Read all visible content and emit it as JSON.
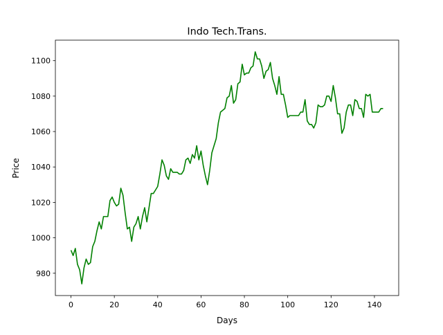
{
  "chart_data": {
    "type": "line",
    "title": "Indo Tech.Trans.",
    "xlabel": "Days",
    "ylabel": "Price",
    "xlim": [
      -7.2,
      151.2
    ],
    "ylim": [
      967.4,
      1111.6
    ],
    "xticks": [
      0,
      20,
      40,
      60,
      80,
      100,
      120,
      140
    ],
    "yticks": [
      980,
      1000,
      1020,
      1040,
      1060,
      1080,
      1100
    ],
    "grid": false,
    "series": [
      {
        "color": "#008000",
        "x": [
          0,
          1,
          2,
          3,
          4,
          5,
          6,
          7,
          8,
          9,
          10,
          11,
          12,
          13,
          14,
          15,
          16,
          17,
          18,
          19,
          20,
          21,
          22,
          23,
          24,
          25,
          26,
          27,
          28,
          29,
          30,
          31,
          32,
          33,
          34,
          35,
          36,
          37,
          38,
          39,
          40,
          41,
          42,
          43,
          44,
          45,
          46,
          47,
          48,
          49,
          50,
          51,
          52,
          53,
          54,
          55,
          56,
          57,
          58,
          59,
          60,
          61,
          62,
          63,
          64,
          65,
          66,
          67,
          68,
          69,
          70,
          71,
          72,
          73,
          74,
          75,
          76,
          77,
          78,
          79,
          80,
          81,
          82,
          83,
          84,
          85,
          86,
          87,
          88,
          89,
          90,
          91,
          92,
          93,
          94,
          95,
          96,
          97,
          98,
          99,
          100,
          101,
          102,
          103,
          104,
          105,
          106,
          107,
          108,
          109,
          110,
          111,
          112,
          113,
          114,
          115,
          116,
          117,
          118,
          119,
          120,
          121,
          122,
          123,
          124,
          125,
          126,
          127,
          128,
          129,
          130,
          131,
          132,
          133,
          134,
          135,
          136,
          137,
          138,
          139,
          140,
          141,
          142,
          143,
          144
        ],
        "y": [
          993,
          990,
          994,
          985,
          982,
          974,
          983,
          988,
          985,
          986,
          995,
          998,
          1004,
          1009,
          1005,
          1012,
          1012,
          1012,
          1021,
          1023,
          1020,
          1018,
          1019,
          1028,
          1024,
          1014,
          1005,
          1006,
          998,
          1006,
          1008,
          1012,
          1005,
          1012,
          1017,
          1009,
          1017,
          1025,
          1025,
          1027,
          1029,
          1036,
          1044,
          1041,
          1035,
          1033,
          1039,
          1037,
          1037,
          1037,
          1036,
          1036,
          1038,
          1044,
          1045,
          1042,
          1047,
          1045,
          1052,
          1044,
          1049,
          1041,
          1035,
          1030,
          1038,
          1048,
          1052,
          1056,
          1065,
          1071,
          1072,
          1073,
          1079,
          1080,
          1086,
          1076,
          1078,
          1087,
          1088,
          1098,
          1092,
          1093,
          1093,
          1096,
          1097,
          1105,
          1101,
          1101,
          1097,
          1090,
          1094,
          1095,
          1099,
          1090,
          1086,
          1081,
          1091,
          1081,
          1081,
          1075,
          1068,
          1069,
          1069,
          1069,
          1069,
          1069,
          1071,
          1071,
          1078,
          1066,
          1064,
          1064,
          1062,
          1065,
          1075,
          1074,
          1074,
          1075,
          1080,
          1080,
          1077,
          1086,
          1079,
          1070,
          1070,
          1059,
          1062,
          1071,
          1075,
          1075,
          1069,
          1078,
          1077,
          1073,
          1073,
          1068,
          1081,
          1080,
          1081,
          1071,
          1071,
          1071,
          1071,
          1073,
          1073
        ]
      }
    ]
  }
}
